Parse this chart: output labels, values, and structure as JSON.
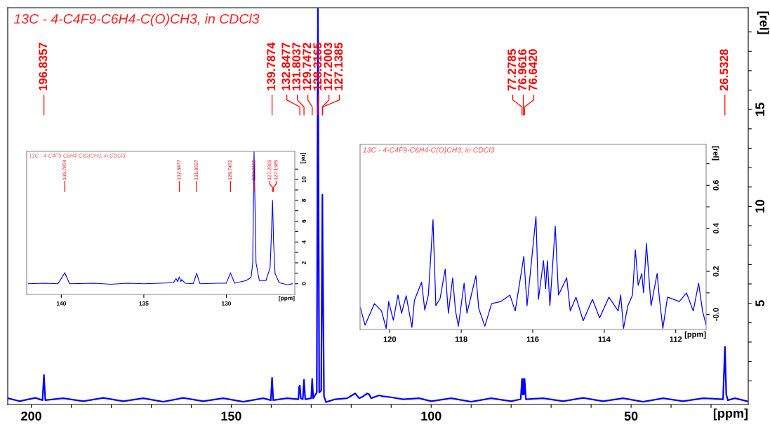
{
  "chart_data": [
    {
      "type": "line",
      "title": "13C - 4-C4F9-C6H4-C(O)CH3, in CDCl3",
      "xlabel": "[ppm]",
      "ylabel": "[rel]",
      "xlim": [
        205.9,
        20.7
      ],
      "ylim": [
        -0.22,
        20.25
      ],
      "xticks": [
        200,
        {
          "value": 190,
          "label": null
        },
        {
          "value": 180,
          "label": null
        },
        {
          "value": 170,
          "label": null
        },
        {
          "value": 160,
          "label": null
        },
        150,
        {
          "value": 140,
          "label": null
        },
        {
          "value": 130,
          "label": null
        },
        {
          "value": 120,
          "label": null
        },
        {
          "value": 110,
          "label": null
        },
        100,
        {
          "value": 90,
          "label": null
        },
        {
          "value": 80,
          "label": null
        },
        {
          "value": 70,
          "label": null
        },
        {
          "value": 60,
          "label": null
        },
        50,
        {
          "value": 40,
          "label": null
        },
        {
          "value": 30,
          "label": null
        }
      ],
      "yticks": [
        {
          "value": 1,
          "label": null
        },
        {
          "value": 2,
          "label": null
        },
        {
          "value": 3,
          "label": null
        },
        {
          "value": 4,
          "label": null
        },
        5,
        {
          "value": 6,
          "label": null
        },
        {
          "value": 7,
          "label": null
        },
        {
          "value": 8,
          "label": null
        },
        {
          "value": 9,
          "label": null
        },
        10,
        {
          "value": 11,
          "label": null
        },
        {
          "value": 12,
          "label": null
        },
        {
          "value": 13,
          "label": null
        },
        {
          "value": 14,
          "label": null
        },
        15,
        {
          "value": 16,
          "label": null
        },
        {
          "value": 17,
          "label": null
        },
        {
          "value": 18,
          "label": null
        },
        {
          "value": 19,
          "label": null
        }
      ],
      "series": [
        {
          "color": "#0000ff",
          "x": [
            205.8,
            203,
            199,
            197.2,
            196.84,
            196.5,
            192,
            187,
            182,
            177,
            172,
            167,
            162,
            157,
            152,
            147,
            142,
            140.1,
            139.79,
            139.5,
            136,
            133.2,
            133.0,
            132.85,
            132.6,
            132.1,
            131.8,
            131.5,
            130.0,
            129.75,
            129.5,
            128.6,
            128.32,
            128.0,
            127.5,
            127.2,
            127.14,
            126.8,
            126.3,
            124,
            121,
            119,
            118,
            117,
            116,
            115.5,
            115,
            113,
            112,
            110,
            107,
            103,
            100,
            95,
            90,
            85,
            80,
            77.6,
            77.28,
            77.1,
            76.96,
            76.8,
            76.64,
            76.3,
            72,
            67,
            62,
            57,
            52,
            47,
            42,
            37,
            32,
            27,
            26.53,
            26.2,
            25.8,
            24,
            21
          ],
          "values": [
            0.1,
            -0.05,
            0.12,
            0.0,
            1.3,
            0.0,
            0.1,
            -0.05,
            0.12,
            -0.05,
            0.1,
            -0.08,
            0.12,
            -0.05,
            0.1,
            -0.08,
            0.1,
            0.0,
            1.15,
            0.0,
            0.1,
            0.05,
            0.7,
            0.75,
            0.1,
            0.05,
            1.05,
            0.05,
            0.1,
            1.1,
            0.1,
            0.4,
            20.2,
            0.4,
            0.5,
            10.6,
            8.0,
            0.2,
            -0.1,
            0.05,
            0.1,
            0.35,
            0.1,
            0.2,
            0.35,
            0.3,
            0.1,
            0.25,
            0.2,
            0.15,
            0.05,
            0.1,
            -0.05,
            0.1,
            -0.08,
            0.1,
            -0.05,
            0.05,
            1.1,
            0.3,
            1.1,
            0.3,
            1.1,
            0.05,
            0.1,
            -0.05,
            0.12,
            -0.05,
            0.1,
            -0.08,
            0.1,
            -0.05,
            0.1,
            0.05,
            2.75,
            0.3,
            0.0,
            0.1,
            -0.05
          ]
        }
      ],
      "annotations": [
        {
          "text": "196.8357",
          "x": 196.8357
        },
        {
          "text": "139.7874",
          "x": 139.7874
        },
        {
          "text": "132.8477",
          "x": 132.8477
        },
        {
          "text": "131.8037",
          "x": 131.8037
        },
        {
          "text": "129.7472",
          "x": 129.7472
        },
        {
          "text": "128.3165",
          "x": 128.3165
        },
        {
          "text": "127.2003",
          "x": 127.2003
        },
        {
          "text": "127.1385",
          "x": 127.1385
        },
        {
          "text": "77.2785",
          "x": 77.2785
        },
        {
          "text": "76.9616",
          "x": 76.9616
        },
        {
          "text": "76.6420",
          "x": 76.642
        },
        {
          "text": "26.5328",
          "x": 26.5328
        }
      ]
    },
    {
      "type": "line",
      "title": "13C - 4-C4F9-C6H4-C(O)CH3, in CDCl3",
      "xlabel": "[ppm]",
      "ylabel": "[rel]",
      "xlim": [
        142.1,
        125.85
      ],
      "ylim": [
        -1.03,
        12.7
      ],
      "xticks": [
        140,
        135,
        130
      ],
      "yticks": [
        0,
        {
          "value": 1,
          "label": null
        },
        2,
        {
          "value": 3,
          "label": null
        },
        4,
        {
          "value": 5,
          "label": null
        },
        6,
        {
          "value": 7,
          "label": null
        },
        8,
        {
          "value": 9,
          "label": null
        },
        10,
        {
          "value": 11,
          "label": null
        }
      ],
      "series": [
        {
          "color": "#0000ff",
          "x": [
            142,
            141,
            140.2,
            139.79,
            139.5,
            138,
            137,
            136,
            135,
            134,
            133.2,
            133.05,
            132.95,
            132.85,
            132.75,
            132.7,
            132.5,
            132,
            131.8,
            131.6,
            130.5,
            130,
            129.75,
            129.5,
            128.8,
            128.5,
            128.4,
            128.32,
            128.2,
            128.0,
            127.6,
            127.35,
            127.27,
            127.2,
            127.14,
            127.05,
            126.8,
            126.3,
            126
          ],
          "values": [
            0.0,
            0.05,
            0.0,
            1.05,
            0.0,
            0.05,
            -0.05,
            0.05,
            0.0,
            0.05,
            0.1,
            0.5,
            0.2,
            0.65,
            0.2,
            0.4,
            0.05,
            0.0,
            1.0,
            0.0,
            0.05,
            0.05,
            1.05,
            0.05,
            0.3,
            0.6,
            2.0,
            12.7,
            2.0,
            0.3,
            0.3,
            1.5,
            4.6,
            8.0,
            4.2,
            1.0,
            0.1,
            -0.1,
            0.0
          ]
        }
      ],
      "annotations": [
        {
          "text": "139.7874",
          "x": 139.7874
        },
        {
          "text": "132.8477",
          "x": 132.8477
        },
        {
          "text": "131.8037",
          "x": 131.8037
        },
        {
          "text": "129.7472",
          "x": 129.7472
        },
        {
          "text": "128.3165",
          "x": 128.3165
        },
        {
          "text": "127.2003",
          "x": 127.2003
        },
        {
          "text": "127.1385",
          "x": 127.1385
        }
      ]
    },
    {
      "type": "line",
      "title": "13C - 4-C4F9-C6H4-C(O)CH3, in CDCl3",
      "xlabel": "[ppm]",
      "ylabel": "[rel]",
      "xlim": [
        120.83,
        111.15
      ],
      "ylim": [
        -0.07,
        0.79
      ],
      "xticks": [
        120,
        118,
        116,
        114,
        112
      ],
      "yticks": [
        {
          "value": 0,
          "label": "-0.0"
        },
        {
          "value": 0.1,
          "label": null
        },
        0.2,
        {
          "value": 0.3,
          "label": null
        },
        0.4,
        {
          "value": 0.5,
          "label": null
        },
        0.6,
        {
          "value": 0.7,
          "label": null
        }
      ],
      "series": [
        {
          "color": "#0000ff",
          "x": [
            120.82,
            120.69,
            120.43,
            120.23,
            120.1,
            120.03,
            119.9,
            119.77,
            119.67,
            119.54,
            119.38,
            119.31,
            119.11,
            119.02,
            118.92,
            118.79,
            118.71,
            118.59,
            118.45,
            118.36,
            118.24,
            118.16,
            118.08,
            117.92,
            117.84,
            117.59,
            117.51,
            117.34,
            117.15,
            116.89,
            116.64,
            116.49,
            116.25,
            116.16,
            115.91,
            115.84,
            115.7,
            115.64,
            115.59,
            115.52,
            115.37,
            115.28,
            115.05,
            114.95,
            114.79,
            114.59,
            114.33,
            114.13,
            113.87,
            113.61,
            113.54,
            113.46,
            113.34,
            113.21,
            113.13,
            113.05,
            112.95,
            112.9,
            112.82,
            112.69,
            112.52,
            112.46,
            112.36,
            112.23,
            111.9,
            111.7,
            111.51,
            111.36,
            111.25,
            111.15
          ],
          "values": [
            0.03,
            -0.05,
            0.05,
            0.016,
            -0.065,
            0.06,
            -0.027,
            0.09,
            0.005,
            0.087,
            -0.06,
            0.065,
            0.15,
            0.02,
            0.09,
            0.44,
            0.04,
            0.075,
            0.21,
            0.005,
            0.17,
            0.016,
            -0.055,
            0.145,
            0.005,
            0.18,
            0.027,
            -0.055,
            0.05,
            0.06,
            0.09,
            0.016,
            0.27,
            0.04,
            0.455,
            0.07,
            0.25,
            0.12,
            0.25,
            0.04,
            0.41,
            0.09,
            0.17,
            0.016,
            0.08,
            -0.03,
            0.07,
            -0.016,
            0.08,
            0.016,
            0.09,
            -0.065,
            0.04,
            0.09,
            0.3,
            0.135,
            0.19,
            0.1,
            0.33,
            0.04,
            0.19,
            0.08,
            -0.065,
            0.08,
            0.06,
            0.1,
            0.016,
            0.145,
            0.016,
            -0.05
          ]
        }
      ]
    }
  ]
}
